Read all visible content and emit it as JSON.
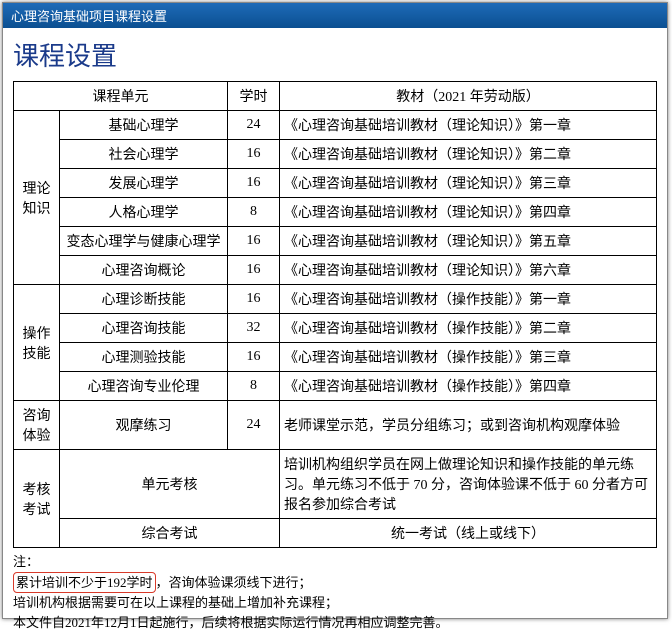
{
  "topbar": {
    "title": "心理咨询基础项目课程设置"
  },
  "page": {
    "title": "课程设置"
  },
  "table": {
    "headers": {
      "unit": "课程单元",
      "hours": "学时",
      "materials": "教材（2021 年劳动版）"
    },
    "groups": [
      {
        "category": "理论知识",
        "rows": [
          {
            "unit": "基础心理学",
            "hours": "24",
            "material": "《心理咨询基础培训教材（理论知识）》第一章"
          },
          {
            "unit": "社会心理学",
            "hours": "16",
            "material": "《心理咨询基础培训教材（理论知识）》第二章"
          },
          {
            "unit": "发展心理学",
            "hours": "16",
            "material": "《心理咨询基础培训教材（理论知识）》第三章"
          },
          {
            "unit": "人格心理学",
            "hours": "8",
            "material": "《心理咨询基础培训教材（理论知识）》第四章"
          },
          {
            "unit": "变态心理学与健康心理学",
            "hours": "16",
            "material": "《心理咨询基础培训教材（理论知识）》第五章"
          },
          {
            "unit": "心理咨询概论",
            "hours": "16",
            "material": "《心理咨询基础培训教材（理论知识）》第六章"
          }
        ]
      },
      {
        "category": "操作技能",
        "rows": [
          {
            "unit": "心理诊断技能",
            "hours": "16",
            "material": "《心理咨询基础培训教材（操作技能）》第一章"
          },
          {
            "unit": "心理咨询技能",
            "hours": "32",
            "material": "《心理咨询基础培训教材（操作技能）》第二章"
          },
          {
            "unit": "心理测验技能",
            "hours": "16",
            "material": "《心理咨询基础培训教材（操作技能）》第三章"
          },
          {
            "unit": "心理咨询专业伦理",
            "hours": "8",
            "material": "《心理咨询基础培训教材（操作技能）》第四章"
          }
        ]
      },
      {
        "category": "咨询体验",
        "rows": [
          {
            "unit": "观摩练习",
            "hours": "24",
            "material": "老师课堂示范，学员分组练习；或到咨询机构观摩体验"
          }
        ]
      },
      {
        "category": "考核考试",
        "rows": [
          {
            "unit": "单元考核",
            "hours": "",
            "material": "培训机构组织学员在网上做理论知识和操作技能的单元练习。单元练习不低于 70 分，咨询体验课不低于 60 分者方可报名参加综合考试"
          },
          {
            "unit": "综合考试",
            "hours": "",
            "material": "统一考试（线上或线下）",
            "material_center": true
          }
        ]
      }
    ]
  },
  "notes": {
    "label": "注：",
    "highlight": "累计培训不少于192学时",
    "line1_rest": "，咨询体验课须线下进行；",
    "line2": "培训机构根据需要可在以上课程的基础上增加补充课程；",
    "line3": "本文件自2021年12月1日起施行，后续将根据实际运行情况再相应调整完善。"
  },
  "style": {
    "topbar_bg_from": "#1e6bb8",
    "topbar_bg_to": "#0b4f91",
    "title_color": "#1a3a8a",
    "border_color": "#000000",
    "highlight_border": "#d83a2a",
    "font_family_body": "SimSun",
    "font_family_topbar": "Microsoft YaHei",
    "font_size_title": 26,
    "font_size_cell": 14,
    "font_size_notes": 13,
    "col_widths": {
      "cat": 46,
      "unit": 168,
      "hours": 52
    }
  }
}
